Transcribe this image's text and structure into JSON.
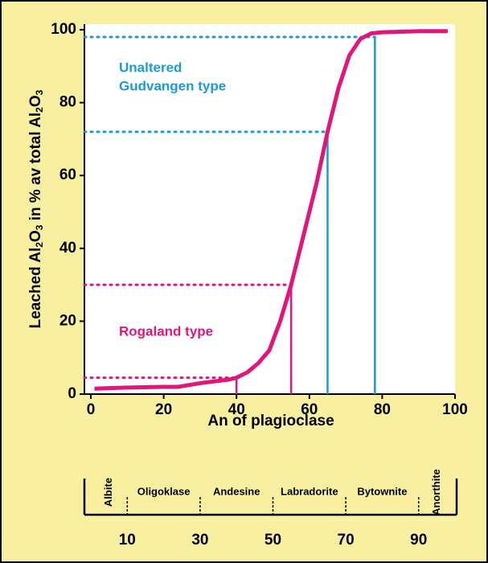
{
  "chart_data": {
    "type": "line",
    "xlabel": "An of plagioclase",
    "ylabel": [
      "Leached Al",
      "2",
      "O",
      "3",
      " in % av total Al",
      "2",
      "O",
      "3"
    ],
    "x": [
      1,
      10,
      20,
      24,
      30,
      38,
      40,
      43,
      46,
      49,
      52,
      55,
      58,
      62,
      65,
      68,
      71,
      74,
      77,
      80,
      90,
      98
    ],
    "series": [
      {
        "color": "#e0177a",
        "values": [
          1.5,
          1.8,
          2,
          2,
          3,
          4,
          4.5,
          6,
          8.5,
          12,
          20,
          30,
          42,
          58,
          72,
          84,
          93,
          97.5,
          99,
          99.3,
          99.6,
          99.6
        ]
      }
    ],
    "xlim": [
      0,
      100
    ],
    "xticks": [
      0,
      20,
      40,
      60,
      80,
      100
    ],
    "ylim": [
      0,
      100
    ],
    "yticks": [
      0,
      20,
      40,
      60,
      80,
      100
    ],
    "references": [
      {
        "x": 78,
        "y": 98,
        "color": "#1a9ad6"
      },
      {
        "x": 65,
        "y": 72,
        "color": "#1a9ad6"
      },
      {
        "x": 55,
        "y": 30,
        "color": "#e0177a"
      },
      {
        "x": 40,
        "y": 4.5,
        "color": "#e0177a"
      }
    ],
    "annotations": [
      {
        "text": "Unaltered",
        "color": "#1a9ad6"
      },
      {
        "text": "Gudvangen type",
        "color": "#1a9ad6"
      },
      {
        "text": "Rogaland type",
        "color": "#e0177a"
      }
    ],
    "scale": {
      "names": [
        "Albite",
        "Oligoklase",
        "Andesine",
        "Labradorite",
        "Bytownite",
        "Anorthite"
      ],
      "ticks": [
        10,
        30,
        50,
        70,
        90
      ]
    }
  }
}
